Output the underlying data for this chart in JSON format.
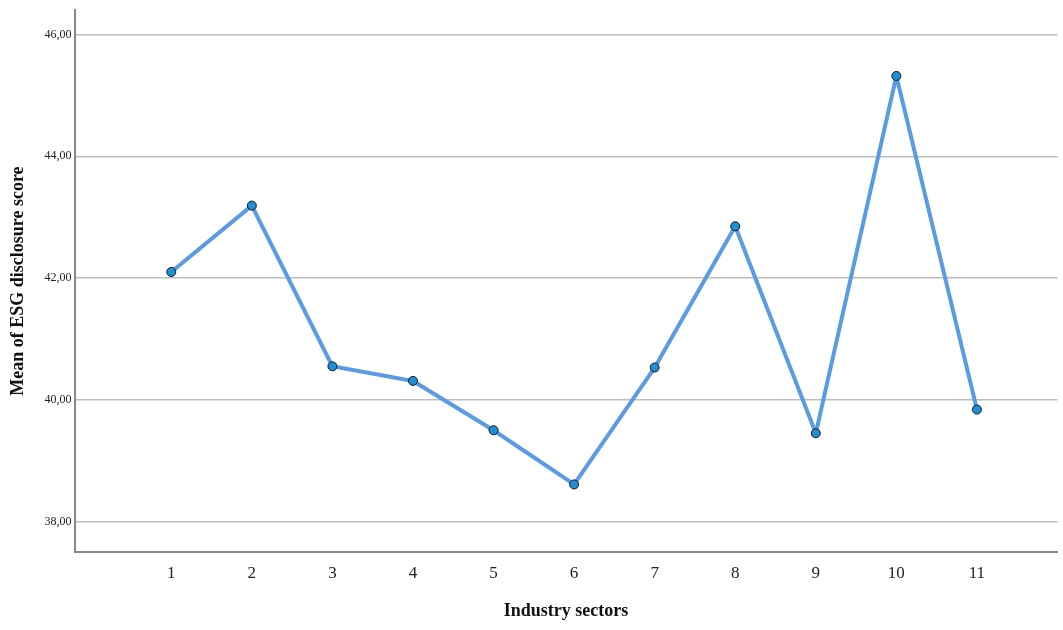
{
  "chart_data": {
    "type": "line",
    "xlabel": "Industry sectors",
    "ylabel": "Mean of ESG disclosure score",
    "categories": [
      "1",
      "2",
      "3",
      "4",
      "5",
      "6",
      "7",
      "8",
      "9",
      "10",
      "11"
    ],
    "series": [
      {
        "color": "#5b9be6",
        "values": [
          42.1,
          43.19,
          40.55,
          40.31,
          39.5,
          38.61,
          40.53,
          42.85,
          39.45,
          45.32,
          39.84
        ]
      }
    ],
    "ylim": [
      37.5,
      46.4
    ],
    "yticks": [
      {
        "value": 38,
        "label": "38,00"
      },
      {
        "value": 40,
        "label": "40,00"
      },
      {
        "value": 42,
        "label": "42,00"
      },
      {
        "value": 44,
        "label": "44,00"
      },
      {
        "value": 46,
        "label": "46,00"
      }
    ],
    "grid": "y",
    "legend": false,
    "marker": "circle",
    "line_style": "solid"
  }
}
